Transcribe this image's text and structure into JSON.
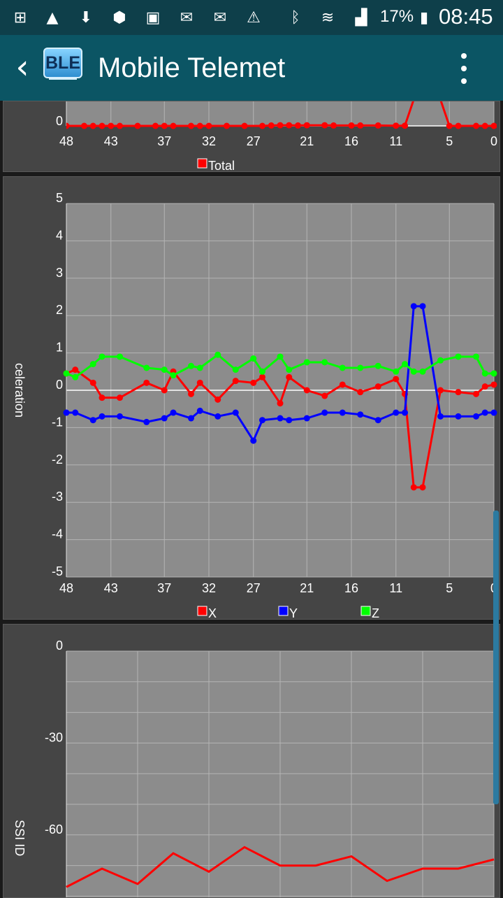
{
  "status_bar": {
    "icons": [
      "add-box-icon",
      "alert-triangle-icon",
      "download-icon",
      "adblock-plus-icon",
      "image-icon",
      "email-icon",
      "mail-open-icon",
      "warning-icon",
      "bluetooth-icon",
      "wifi-icon",
      "signal-icon",
      "battery-icon"
    ],
    "battery_percent": "17%",
    "time": "08:45"
  },
  "app_bar": {
    "back_glyph": "‹",
    "logo_text": "BLE",
    "title": "Mobile Telemet"
  },
  "colors": {
    "x": "#ff0000",
    "y": "#0000ff",
    "z": "#00ff00",
    "total": "#ff0000",
    "plot_bg": "#8c8c8c"
  },
  "charts": {
    "total": {
      "x_ticks": [
        "48",
        "43",
        "37",
        "32",
        "27",
        "21",
        "16",
        "11",
        "5",
        "0"
      ],
      "y_tick_visible": "0",
      "legend": [
        "Total"
      ]
    },
    "acceleration": {
      "ylabel_visible": "celeration",
      "x_ticks": [
        "48",
        "43",
        "37",
        "32",
        "27",
        "21",
        "16",
        "11",
        "5",
        "0"
      ],
      "y_ticks": [
        "5",
        "4",
        "3",
        "2",
        "1",
        "0",
        "-1",
        "-2",
        "-3",
        "-4",
        "-5"
      ],
      "legend": [
        "X",
        "Y",
        "Z"
      ]
    },
    "rssi": {
      "ylabel_visible": "SSI ID",
      "y_ticks": [
        "0",
        "-30",
        "-60"
      ]
    }
  },
  "chart_data": [
    {
      "type": "line",
      "legend": [
        "Total"
      ],
      "x": [
        48,
        46,
        45,
        44,
        43,
        42,
        40,
        38,
        37,
        36,
        34,
        33,
        32,
        30,
        28,
        26,
        25,
        24,
        23,
        22,
        21,
        19,
        18,
        16,
        15,
        13,
        11,
        10,
        8,
        7,
        5,
        4,
        2,
        1,
        0
      ],
      "series": [
        {
          "name": "Total",
          "values": [
            0,
            0,
            0,
            0,
            0,
            0,
            0,
            0,
            0,
            0,
            0,
            0,
            0,
            0,
            0,
            0,
            0.02,
            0.03,
            0.03,
            0.02,
            0.03,
            0.03,
            0.02,
            0.02,
            0.02,
            0.02,
            0.01,
            0.01,
            2.5,
            2.5,
            0,
            0,
            0,
            0,
            0
          ]
        }
      ],
      "ylim_visible": [
        0,
        0.3
      ]
    },
    {
      "type": "line",
      "legend": [
        "X",
        "Y",
        "Z"
      ],
      "x": [
        48,
        47,
        45,
        44,
        42,
        39,
        37,
        36,
        34,
        33,
        31,
        29,
        27,
        26,
        24,
        23,
        21,
        19,
        17,
        15,
        13,
        11,
        10,
        9,
        8,
        6,
        4,
        2,
        1,
        0
      ],
      "series": [
        {
          "name": "X",
          "values": [
            0.45,
            0.55,
            0.2,
            -0.2,
            -0.2,
            0.2,
            0.0,
            0.5,
            -0.1,
            0.2,
            -0.25,
            0.25,
            0.2,
            0.35,
            -0.35,
            0.35,
            0.0,
            -0.15,
            0.15,
            -0.05,
            0.1,
            0.3,
            -0.1,
            -2.6,
            -2.6,
            0.0,
            -0.05,
            -0.1,
            0.1,
            0.15
          ]
        },
        {
          "name": "Y",
          "values": [
            -0.6,
            -0.6,
            -0.8,
            -0.7,
            -0.7,
            -0.85,
            -0.75,
            -0.6,
            -0.75,
            -0.55,
            -0.7,
            -0.6,
            -1.35,
            -0.8,
            -0.75,
            -0.8,
            -0.75,
            -0.6,
            -0.6,
            -0.65,
            -0.8,
            -0.6,
            -0.6,
            2.25,
            2.25,
            -0.7,
            -0.7,
            -0.7,
            -0.6,
            -0.6
          ]
        },
        {
          "name": "Z",
          "values": [
            0.45,
            0.35,
            0.7,
            0.9,
            0.9,
            0.6,
            0.55,
            0.4,
            0.65,
            0.6,
            0.95,
            0.55,
            0.85,
            0.5,
            0.9,
            0.55,
            0.75,
            0.75,
            0.6,
            0.6,
            0.65,
            0.5,
            0.7,
            0.5,
            0.5,
            0.8,
            0.9,
            0.9,
            0.45,
            0.45
          ]
        }
      ],
      "ylim": [
        -5,
        5
      ]
    },
    {
      "type": "line",
      "series": [
        {
          "values": [
            -77,
            -71,
            -76,
            -66,
            -72,
            -64,
            -70,
            -70,
            -67,
            -75,
            -71,
            -71,
            -68
          ]
        }
      ],
      "ylim_visible": [
        -76,
        0
      ]
    }
  ]
}
